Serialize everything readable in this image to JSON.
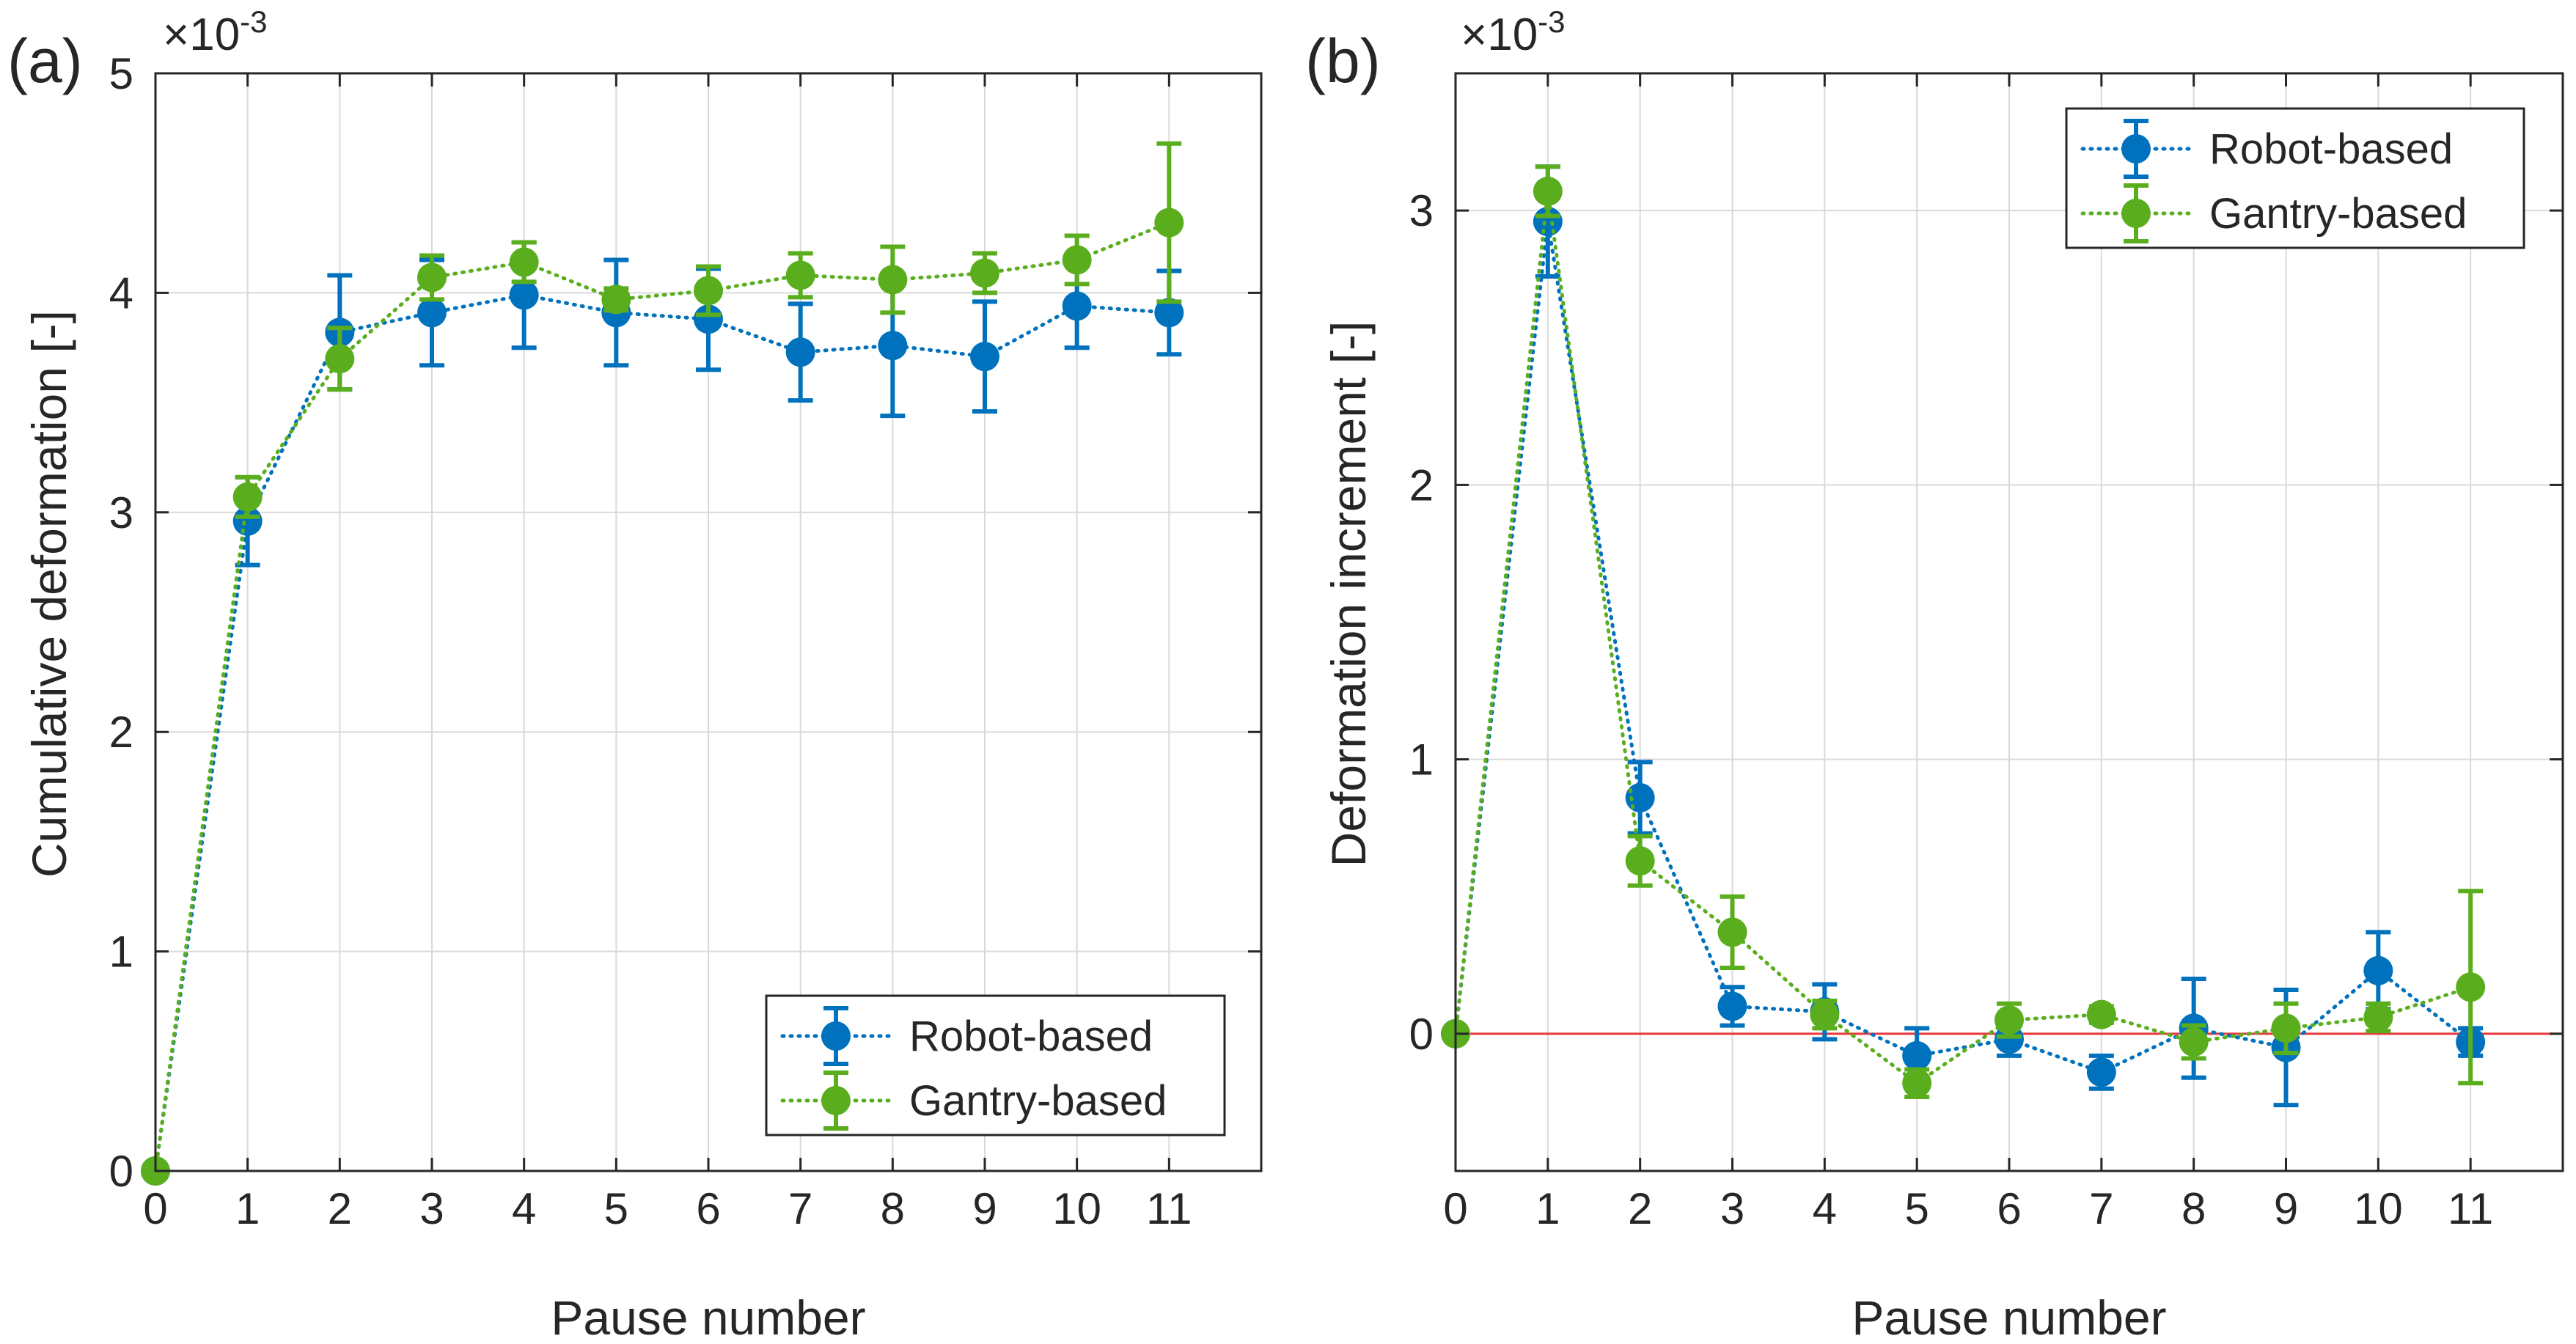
{
  "figure": {
    "colors": {
      "robot": "#0072BD",
      "gantry": "#5AAE1E",
      "zero_line": "#E8383D",
      "axis": "#262626",
      "grid": "#D9D9D9"
    }
  },
  "chart_data": [
    {
      "panel_label": "(a)",
      "type": "line",
      "exponent_label": "×10",
      "exponent_power": "-3",
      "xlabel": "Pause number",
      "ylabel": "Cumulative deformation [-]",
      "xlim": [
        0,
        12
      ],
      "ylim": [
        0,
        5
      ],
      "x_ticks": [
        0,
        1,
        2,
        3,
        4,
        5,
        6,
        7,
        8,
        9,
        10,
        11
      ],
      "x_tick_labels": [
        "0",
        "1",
        "2",
        "3",
        "4",
        "5",
        "6",
        "7",
        "8",
        "9",
        "10",
        "11"
      ],
      "y_ticks": [
        0,
        1,
        2,
        3,
        4,
        5
      ],
      "y_tick_labels": [
        "0",
        "1",
        "2",
        "3",
        "4",
        "5"
      ],
      "grid": true,
      "zero_line": false,
      "legend_position": "bottom-right",
      "series": [
        {
          "name": "Robot-based",
          "x": [
            0,
            1,
            2,
            3,
            4,
            5,
            6,
            7,
            8,
            9,
            10,
            11
          ],
          "y": [
            0,
            2.96,
            3.82,
            3.91,
            3.99,
            3.91,
            3.88,
            3.73,
            3.76,
            3.71,
            3.94,
            3.91
          ],
          "err": [
            0,
            0.2,
            0.26,
            0.24,
            0.24,
            0.24,
            0.23,
            0.22,
            0.32,
            0.25,
            0.19,
            0.19
          ]
        },
        {
          "name": "Gantry-based",
          "x": [
            0,
            1,
            2,
            3,
            4,
            5,
            6,
            7,
            8,
            9,
            10,
            11
          ],
          "y": [
            0,
            3.07,
            3.7,
            4.07,
            4.14,
            3.97,
            4.01,
            4.08,
            4.06,
            4.09,
            4.15,
            4.32
          ],
          "err": [
            0,
            0.09,
            0.14,
            0.1,
            0.09,
            0.05,
            0.11,
            0.1,
            0.15,
            0.09,
            0.11,
            0.36
          ]
        }
      ]
    },
    {
      "panel_label": "(b)",
      "type": "line",
      "exponent_label": "×10",
      "exponent_power": "-3",
      "xlabel": "Pause number",
      "ylabel": "Deformation increment [-]",
      "xlim": [
        0,
        12
      ],
      "ylim": [
        -0.5,
        3.5
      ],
      "x_ticks": [
        0,
        1,
        2,
        3,
        4,
        5,
        6,
        7,
        8,
        9,
        10,
        11
      ],
      "x_tick_labels": [
        "0",
        "1",
        "2",
        "3",
        "4",
        "5",
        "6",
        "7",
        "8",
        "9",
        "10",
        "11"
      ],
      "y_ticks": [
        0,
        1,
        2,
        3
      ],
      "y_tick_labels": [
        "0",
        "1",
        "2",
        "3"
      ],
      "grid": true,
      "zero_line": true,
      "legend_position": "top-right",
      "series": [
        {
          "name": "Robot-based",
          "x": [
            0,
            1,
            2,
            3,
            4,
            5,
            6,
            7,
            8,
            9,
            10,
            11
          ],
          "y": [
            0,
            2.96,
            0.86,
            0.1,
            0.08,
            -0.08,
            -0.02,
            -0.14,
            0.02,
            -0.05,
            0.23,
            -0.03
          ],
          "err": [
            0,
            0.2,
            0.13,
            0.07,
            0.1,
            0.1,
            0.06,
            0.06,
            0.18,
            0.21,
            0.14,
            0.05
          ]
        },
        {
          "name": "Gantry-based",
          "x": [
            0,
            1,
            2,
            3,
            4,
            5,
            6,
            7,
            8,
            9,
            10,
            11
          ],
          "y": [
            0,
            3.07,
            0.63,
            0.37,
            0.07,
            -0.18,
            0.05,
            0.07,
            -0.03,
            0.02,
            0.06,
            0.17
          ],
          "err": [
            0,
            0.09,
            0.09,
            0.13,
            0.05,
            0.05,
            0.06,
            0.03,
            0.06,
            0.09,
            0.05,
            0.35
          ]
        }
      ]
    }
  ]
}
